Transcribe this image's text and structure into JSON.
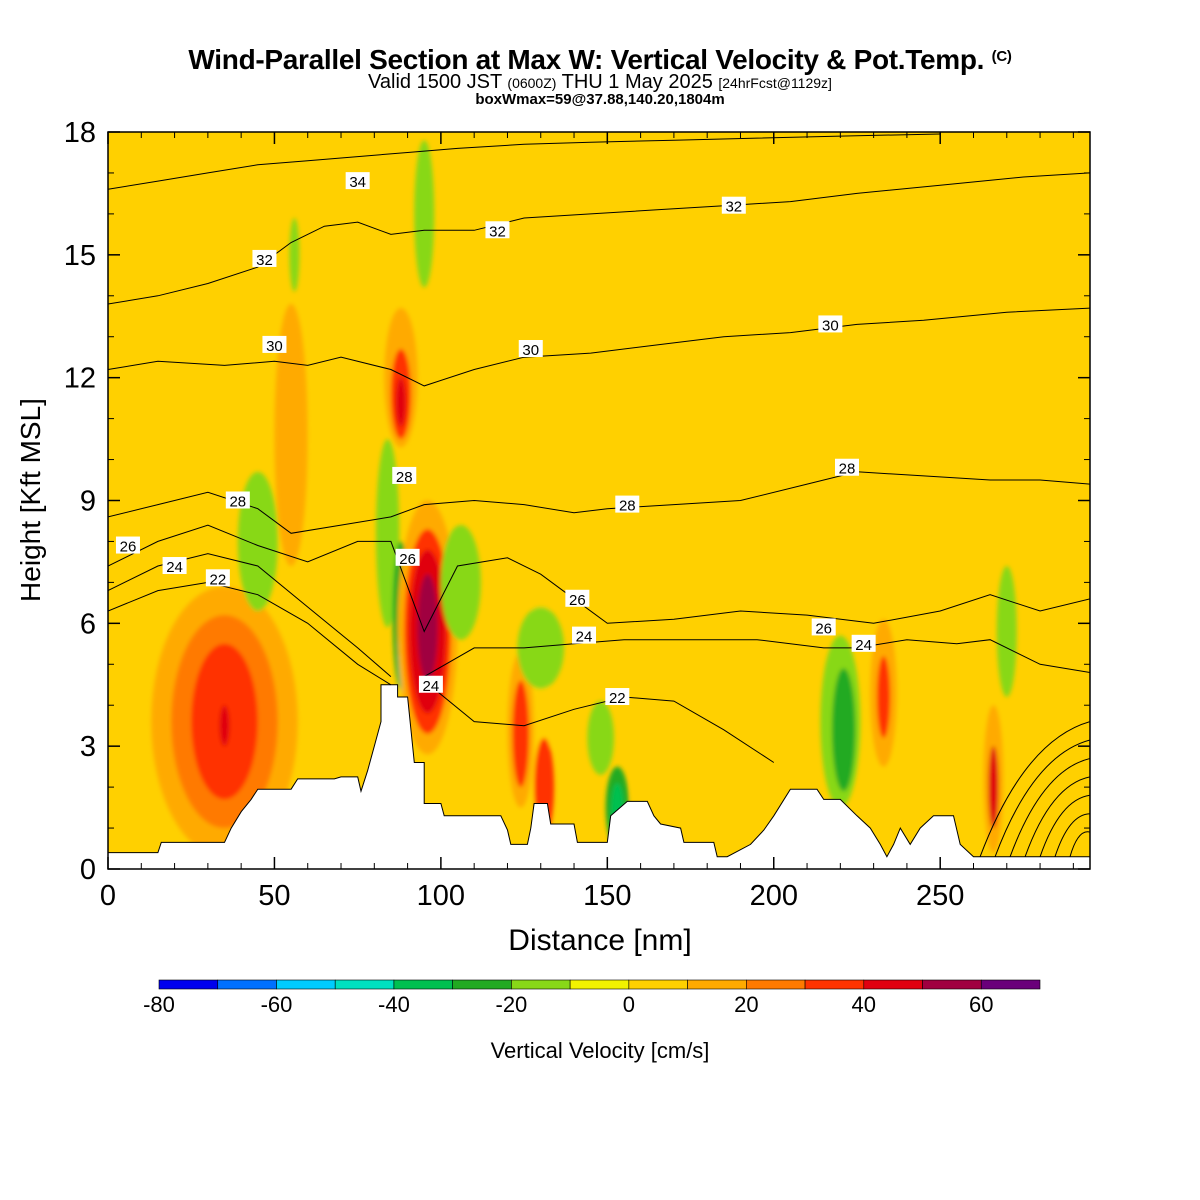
{
  "header": {
    "title": "Wind-Parallel Section at Max W: Vertical Velocity & Pot.Temp.",
    "copyright": "(C)",
    "valid_prefix": "Valid 1500 JST",
    "valid_utc": "(0600Z)",
    "valid_date": "THU 1 May 2025",
    "forecast": "[24hrFcst@1129z]",
    "box_info": "boxWmax=59@37.88,140.20,1804m"
  },
  "chart_data": {
    "type": "heatmap",
    "title": "Wind-Parallel Section at Max W: Vertical Velocity & Pot.Temp.",
    "xlabel": "Distance [nm]",
    "ylabel": "Height [Kft MSL]",
    "xlim": [
      0,
      295
    ],
    "ylim": [
      0,
      18
    ],
    "x_ticks": [
      0,
      50,
      100,
      150,
      200,
      250
    ],
    "y_ticks": [
      0,
      3,
      6,
      9,
      12,
      15,
      18
    ],
    "colorbar": {
      "label": "Vertical Velocity [cm/s]",
      "levels": [
        -80,
        -70,
        -60,
        -50,
        -40,
        -30,
        -20,
        -10,
        0,
        10,
        20,
        30,
        40,
        50,
        60,
        70
      ],
      "tick_values": [
        -80,
        -60,
        -40,
        -20,
        0,
        20,
        40,
        60
      ],
      "colors": [
        "#0000ee",
        "#0070ff",
        "#00ccff",
        "#00e0c0",
        "#00c050",
        "#22aa22",
        "#88d818",
        "#f2f200",
        "#ffd000",
        "#ffaa00",
        "#ff7a00",
        "#ff3300",
        "#e00010",
        "#a00040",
        "#6a007a"
      ]
    },
    "terrain": [
      [
        0,
        0.4
      ],
      [
        15,
        0.4
      ],
      [
        16,
        0.65
      ],
      [
        35,
        0.65
      ],
      [
        37,
        1.0
      ],
      [
        40,
        1.4
      ],
      [
        43,
        1.7
      ],
      [
        45,
        1.95
      ],
      [
        55,
        1.95
      ],
      [
        57,
        2.2
      ],
      [
        68,
        2.2
      ],
      [
        70,
        2.25
      ],
      [
        75,
        2.25
      ],
      [
        76,
        1.9
      ],
      [
        78,
        2.4
      ],
      [
        80,
        3.0
      ],
      [
        82,
        3.6
      ],
      [
        82,
        4.5
      ],
      [
        87,
        4.5
      ],
      [
        87,
        4.2
      ],
      [
        90,
        4.2
      ],
      [
        92,
        2.6
      ],
      [
        95,
        2.6
      ],
      [
        95,
        1.6
      ],
      [
        100,
        1.6
      ],
      [
        101,
        1.3
      ],
      [
        118,
        1.3
      ],
      [
        120,
        0.95
      ],
      [
        121,
        0.6
      ],
      [
        126,
        0.6
      ],
      [
        127,
        1.0
      ],
      [
        128,
        1.6
      ],
      [
        132,
        1.6
      ],
      [
        133,
        1.1
      ],
      [
        140,
        1.1
      ],
      [
        141,
        0.65
      ],
      [
        150,
        0.65
      ],
      [
        151,
        1.3
      ],
      [
        156,
        1.65
      ],
      [
        162,
        1.65
      ],
      [
        164,
        1.3
      ],
      [
        166,
        1.1
      ],
      [
        172,
        1.0
      ],
      [
        173,
        0.65
      ],
      [
        182,
        0.65
      ],
      [
        183,
        0.3
      ],
      [
        186,
        0.3
      ],
      [
        193,
        0.6
      ],
      [
        197,
        0.95
      ],
      [
        200,
        1.3
      ],
      [
        205,
        1.95
      ],
      [
        213,
        1.95
      ],
      [
        215,
        1.7
      ],
      [
        220,
        1.7
      ],
      [
        225,
        1.3
      ],
      [
        229,
        1.0
      ],
      [
        232,
        0.6
      ],
      [
        234,
        0.3
      ],
      [
        236,
        0.6
      ],
      [
        238,
        1.0
      ],
      [
        241,
        0.6
      ],
      [
        244,
        1.0
      ],
      [
        248,
        1.3
      ],
      [
        254,
        1.3
      ],
      [
        256,
        0.6
      ],
      [
        260,
        0.3
      ],
      [
        295,
        0.3
      ]
    ],
    "theta_contours": [
      {
        "label": "22",
        "points": [
          [
            0,
            6.3
          ],
          [
            15,
            6.8
          ],
          [
            30,
            7.0
          ],
          [
            45,
            6.7
          ],
          [
            60,
            6.0
          ],
          [
            75,
            5.0
          ],
          [
            85,
            4.5
          ]
        ]
      },
      {
        "label": "22",
        "points": [
          [
            95,
            4.6
          ],
          [
            110,
            3.6
          ],
          [
            125,
            3.5
          ],
          [
            140,
            3.9
          ],
          [
            155,
            4.2
          ],
          [
            170,
            4.1
          ],
          [
            185,
            3.4
          ],
          [
            200,
            2.6
          ]
        ]
      },
      {
        "label": "24",
        "points": [
          [
            0,
            6.8
          ],
          [
            15,
            7.4
          ],
          [
            30,
            7.7
          ],
          [
            45,
            7.4
          ],
          [
            60,
            6.4
          ],
          [
            75,
            5.4
          ],
          [
            85,
            4.7
          ]
        ]
      },
      {
        "label": "24",
        "points": [
          [
            95,
            4.7
          ],
          [
            110,
            5.4
          ],
          [
            125,
            5.4
          ],
          [
            140,
            5.5
          ],
          [
            155,
            5.6
          ],
          [
            175,
            5.6
          ],
          [
            195,
            5.6
          ],
          [
            215,
            5.4
          ],
          [
            225,
            5.4
          ],
          [
            240,
            5.6
          ],
          [
            255,
            5.5
          ],
          [
            265,
            5.6
          ],
          [
            280,
            5.0
          ],
          [
            295,
            4.8
          ]
        ]
      },
      {
        "label": "26",
        "points": [
          [
            0,
            7.4
          ],
          [
            15,
            8.0
          ],
          [
            30,
            8.4
          ],
          [
            45,
            7.9
          ],
          [
            60,
            7.5
          ],
          [
            75,
            8.0
          ],
          [
            85,
            8.0
          ],
          [
            95,
            5.8
          ],
          [
            105,
            7.4
          ],
          [
            120,
            7.6
          ],
          [
            130,
            7.2
          ],
          [
            140,
            6.6
          ],
          [
            150,
            6.0
          ],
          [
            170,
            6.1
          ],
          [
            190,
            6.3
          ],
          [
            210,
            6.2
          ],
          [
            230,
            6.0
          ],
          [
            250,
            6.3
          ],
          [
            265,
            6.7
          ],
          [
            280,
            6.3
          ],
          [
            295,
            6.6
          ]
        ]
      },
      {
        "label": "28",
        "points": [
          [
            0,
            8.6
          ],
          [
            15,
            8.9
          ],
          [
            30,
            9.2
          ],
          [
            45,
            8.8
          ],
          [
            55,
            8.2
          ],
          [
            70,
            8.4
          ],
          [
            85,
            8.6
          ],
          [
            95,
            8.9
          ],
          [
            110,
            9.0
          ],
          [
            125,
            8.9
          ],
          [
            140,
            8.7
          ],
          [
            150,
            8.8
          ],
          [
            170,
            8.9
          ],
          [
            190,
            9.0
          ],
          [
            210,
            9.4
          ],
          [
            225,
            9.7
          ],
          [
            245,
            9.6
          ],
          [
            265,
            9.5
          ],
          [
            280,
            9.5
          ],
          [
            295,
            9.4
          ]
        ]
      },
      {
        "label": "30",
        "points": [
          [
            0,
            12.2
          ],
          [
            15,
            12.4
          ],
          [
            35,
            12.3
          ],
          [
            50,
            12.4
          ],
          [
            60,
            12.3
          ],
          [
            70,
            12.5
          ],
          [
            85,
            12.2
          ],
          [
            95,
            11.8
          ],
          [
            110,
            12.2
          ],
          [
            125,
            12.5
          ],
          [
            145,
            12.6
          ],
          [
            165,
            12.8
          ],
          [
            185,
            13.0
          ],
          [
            205,
            13.1
          ],
          [
            225,
            13.3
          ],
          [
            245,
            13.4
          ],
          [
            270,
            13.6
          ],
          [
            295,
            13.7
          ]
        ]
      },
      {
        "label": "32",
        "points": [
          [
            0,
            13.8
          ],
          [
            15,
            14.0
          ],
          [
            30,
            14.3
          ],
          [
            45,
            14.7
          ],
          [
            55,
            15.3
          ],
          [
            65,
            15.7
          ],
          [
            75,
            15.8
          ],
          [
            85,
            15.5
          ],
          [
            95,
            15.6
          ],
          [
            110,
            15.6
          ],
          [
            125,
            15.9
          ],
          [
            145,
            16.0
          ],
          [
            165,
            16.1
          ],
          [
            185,
            16.2
          ],
          [
            205,
            16.3
          ],
          [
            225,
            16.5
          ],
          [
            250,
            16.7
          ],
          [
            275,
            16.9
          ],
          [
            295,
            17.0
          ]
        ]
      },
      {
        "label": "34",
        "points": [
          [
            0,
            16.6
          ],
          [
            15,
            16.8
          ],
          [
            30,
            17.0
          ],
          [
            45,
            17.2
          ],
          [
            60,
            17.3
          ],
          [
            75,
            17.4
          ],
          [
            90,
            17.5
          ],
          [
            105,
            17.6
          ],
          [
            125,
            17.7
          ],
          [
            145,
            17.75
          ],
          [
            170,
            17.8
          ],
          [
            195,
            17.85
          ],
          [
            220,
            17.9
          ],
          [
            250,
            17.95
          ]
        ]
      }
    ],
    "contour_labels": [
      {
        "text": "34",
        "x": 75,
        "y": 16.8
      },
      {
        "text": "32",
        "x": 47,
        "y": 14.9
      },
      {
        "text": "32",
        "x": 117,
        "y": 15.6
      },
      {
        "text": "32",
        "x": 188,
        "y": 16.2
      },
      {
        "text": "30",
        "x": 50,
        "y": 12.8
      },
      {
        "text": "30",
        "x": 127,
        "y": 12.7
      },
      {
        "text": "30",
        "x": 217,
        "y": 13.3
      },
      {
        "text": "28",
        "x": 39,
        "y": 9.0
      },
      {
        "text": "28",
        "x": 89,
        "y": 9.6
      },
      {
        "text": "28",
        "x": 156,
        "y": 8.9
      },
      {
        "text": "28",
        "x": 222,
        "y": 9.8
      },
      {
        "text": "26",
        "x": 6,
        "y": 7.9
      },
      {
        "text": "26",
        "x": 90,
        "y": 7.6
      },
      {
        "text": "26",
        "x": 141,
        "y": 6.6
      },
      {
        "text": "26",
        "x": 215,
        "y": 5.9
      },
      {
        "text": "24",
        "x": 20,
        "y": 7.4
      },
      {
        "text": "24",
        "x": 143,
        "y": 5.7
      },
      {
        "text": "24",
        "x": 97,
        "y": 4.5
      },
      {
        "text": "24",
        "x": 227,
        "y": 5.5
      },
      {
        "text": "22",
        "x": 33,
        "y": 7.1
      },
      {
        "text": "22",
        "x": 153,
        "y": 4.2
      }
    ],
    "velocity_features": [
      {
        "x": 35,
        "y": 3.6,
        "rx": 22,
        "ry": 3.3,
        "value": 12
      },
      {
        "x": 35,
        "y": 3.6,
        "rx": 16,
        "ry": 2.6,
        "value": 22
      },
      {
        "x": 35,
        "y": 3.6,
        "rx": 10,
        "ry": 1.9,
        "value": 32
      },
      {
        "x": 35,
        "y": 3.5,
        "rx": 5,
        "ry": 1.2,
        "value": 36
      },
      {
        "x": 35,
        "y": 3.5,
        "rx": 1.5,
        "ry": 0.5,
        "value": 45
      },
      {
        "x": 45,
        "y": 8.0,
        "rx": 6,
        "ry": 1.7,
        "value": -15
      },
      {
        "x": 55,
        "y": 10.6,
        "rx": 5,
        "ry": 3.2,
        "value": 15
      },
      {
        "x": 56,
        "y": 15.0,
        "rx": 1.5,
        "ry": 0.9,
        "value": -15
      },
      {
        "x": 88,
        "y": 12.0,
        "rx": 5,
        "ry": 1.7,
        "value": 15
      },
      {
        "x": 88,
        "y": 11.6,
        "rx": 3,
        "ry": 1.1,
        "value": 32
      },
      {
        "x": 88,
        "y": 11.4,
        "rx": 1.5,
        "ry": 0.6,
        "value": 45
      },
      {
        "x": 84,
        "y": 8.2,
        "rx": 3.5,
        "ry": 2.3,
        "value": -15
      },
      {
        "x": 88,
        "y": 6.2,
        "rx": 2.5,
        "ry": 1.8,
        "value": -25
      },
      {
        "x": 89,
        "y": 5.6,
        "rx": 2,
        "ry": 1.4,
        "value": -45
      },
      {
        "x": 89,
        "y": 5.2,
        "rx": 1.2,
        "ry": 0.8,
        "value": -75
      },
      {
        "x": 96,
        "y": 5.9,
        "rx": 9,
        "ry": 3.1,
        "value": 15
      },
      {
        "x": 96,
        "y": 5.8,
        "rx": 7,
        "ry": 2.5,
        "value": 32
      },
      {
        "x": 96,
        "y": 5.8,
        "rx": 5.5,
        "ry": 2.0,
        "value": 45
      },
      {
        "x": 96,
        "y": 5.9,
        "rx": 3,
        "ry": 1.3,
        "value": 55
      },
      {
        "x": 106,
        "y": 7.0,
        "rx": 6,
        "ry": 1.4,
        "value": -15
      },
      {
        "x": 124,
        "y": 3.4,
        "rx": 4,
        "ry": 1.9,
        "value": 15
      },
      {
        "x": 124,
        "y": 3.3,
        "rx": 2.5,
        "ry": 1.3,
        "value": 32
      },
      {
        "x": 131,
        "y": 2.0,
        "rx": 3,
        "ry": 1.2,
        "value": 32
      },
      {
        "x": 130,
        "y": 5.4,
        "rx": 7,
        "ry": 1.0,
        "value": -15
      },
      {
        "x": 153,
        "y": 1.5,
        "rx": 3.5,
        "ry": 1.0,
        "value": -25
      },
      {
        "x": 153,
        "y": 1.4,
        "rx": 2,
        "ry": 0.7,
        "value": -35
      },
      {
        "x": 148,
        "y": 3.2,
        "rx": 4,
        "ry": 0.9,
        "value": -15
      },
      {
        "x": 220,
        "y": 3.6,
        "rx": 6,
        "ry": 2.1,
        "value": -15
      },
      {
        "x": 221,
        "y": 3.4,
        "rx": 3.5,
        "ry": 1.5,
        "value": -30
      },
      {
        "x": 233,
        "y": 4.3,
        "rx": 4,
        "ry": 1.8,
        "value": 15
      },
      {
        "x": 233,
        "y": 4.2,
        "rx": 2,
        "ry": 1.0,
        "value": 32
      },
      {
        "x": 266,
        "y": 2.2,
        "rx": 3,
        "ry": 1.8,
        "value": 15
      },
      {
        "x": 266,
        "y": 2.0,
        "rx": 1.5,
        "ry": 1.0,
        "value": 42
      },
      {
        "x": 270,
        "y": 5.8,
        "rx": 3,
        "ry": 1.6,
        "value": -15
      },
      {
        "x": 95,
        "y": 16.0,
        "rx": 3,
        "ry": 1.8,
        "value": -15
      },
      {
        "x": 10,
        "y": 16.5,
        "rx": 12,
        "ry": 1.5,
        "value": 8
      },
      {
        "x": 285,
        "y": 12.0,
        "rx": 6,
        "ry": 6,
        "value": 8
      }
    ],
    "velocity_bands": [
      {
        "x": 130,
        "w": 6,
        "value": 8
      },
      {
        "x": 178,
        "w": 5,
        "value": 8
      },
      {
        "x": 200,
        "w": 6,
        "value": 8
      },
      {
        "x": 238,
        "w": 5,
        "value": 8
      },
      {
        "x": 255,
        "w": 5,
        "value": 8
      },
      {
        "x": 64,
        "w": 7,
        "value": 8
      },
      {
        "x": 160,
        "w": 5,
        "value": 8
      }
    ]
  }
}
